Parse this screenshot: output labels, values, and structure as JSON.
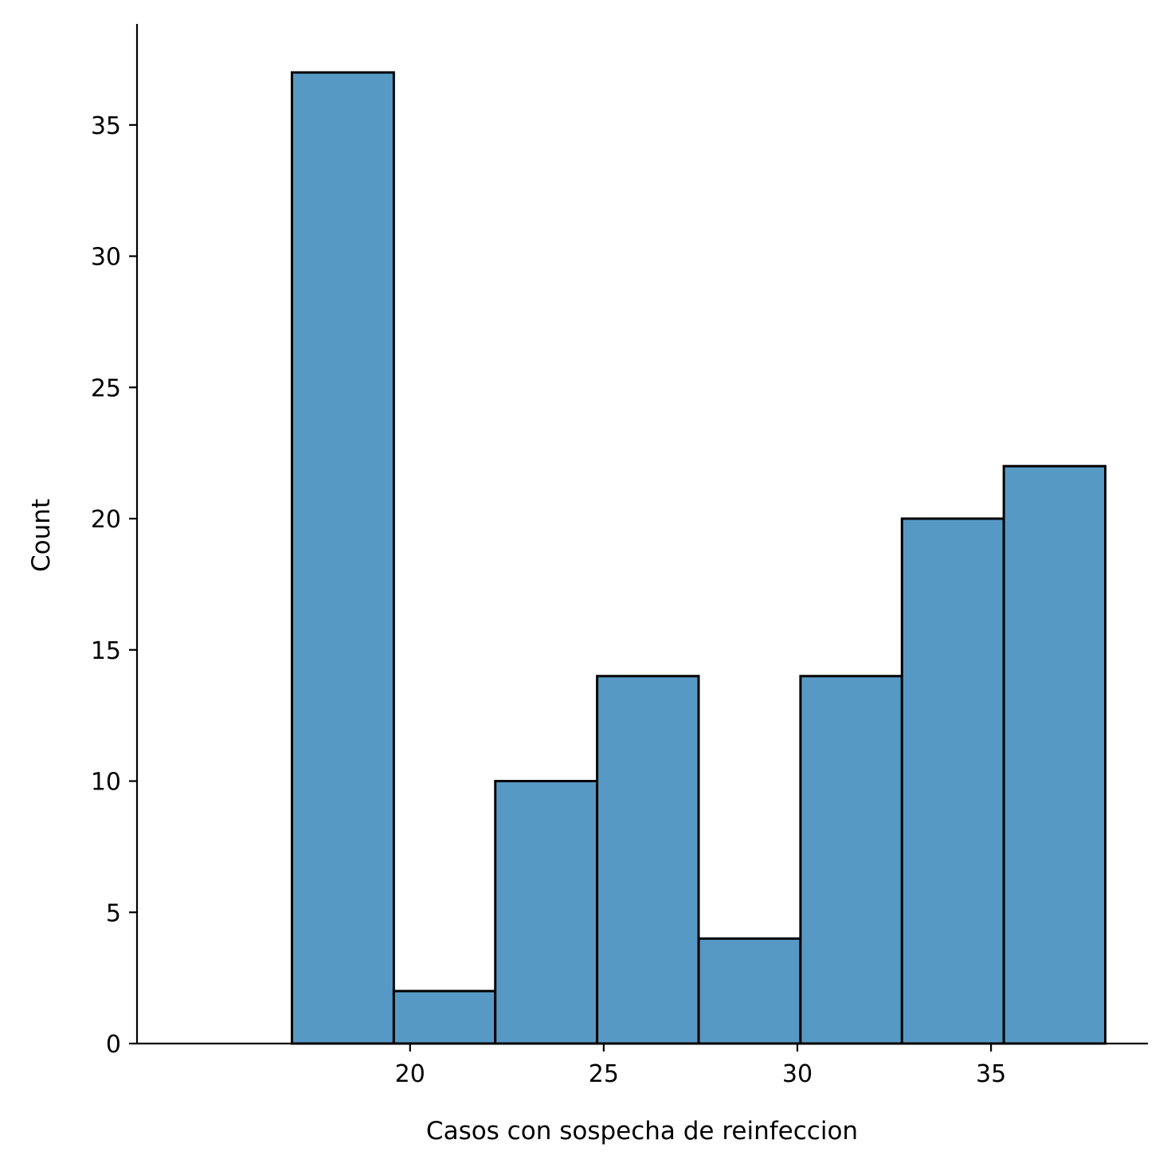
{
  "chart_data": {
    "type": "histogram",
    "title": "",
    "xlabel": "Casos con sospecha de reinfeccion",
    "ylabel": "Count",
    "bins": [
      {
        "start": 16.95,
        "end": 19.58,
        "count": 37
      },
      {
        "start": 19.58,
        "end": 22.2,
        "count": 2
      },
      {
        "start": 22.2,
        "end": 24.83,
        "count": 10
      },
      {
        "start": 24.83,
        "end": 27.45,
        "count": 14
      },
      {
        "start": 27.45,
        "end": 30.08,
        "count": 4
      },
      {
        "start": 30.08,
        "end": 32.7,
        "count": 14
      },
      {
        "start": 32.7,
        "end": 35.33,
        "count": 20
      },
      {
        "start": 35.33,
        "end": 37.95,
        "count": 22
      }
    ],
    "xlim": [
      12.95,
      39.05
    ],
    "ylim": [
      0,
      38.85
    ],
    "xticks": [
      20,
      25,
      30,
      35
    ],
    "yticks": [
      0,
      5,
      10,
      15,
      20,
      25,
      30,
      35
    ],
    "bar_color": "#5799c5",
    "edge_color": "#000000",
    "grid": false
  }
}
